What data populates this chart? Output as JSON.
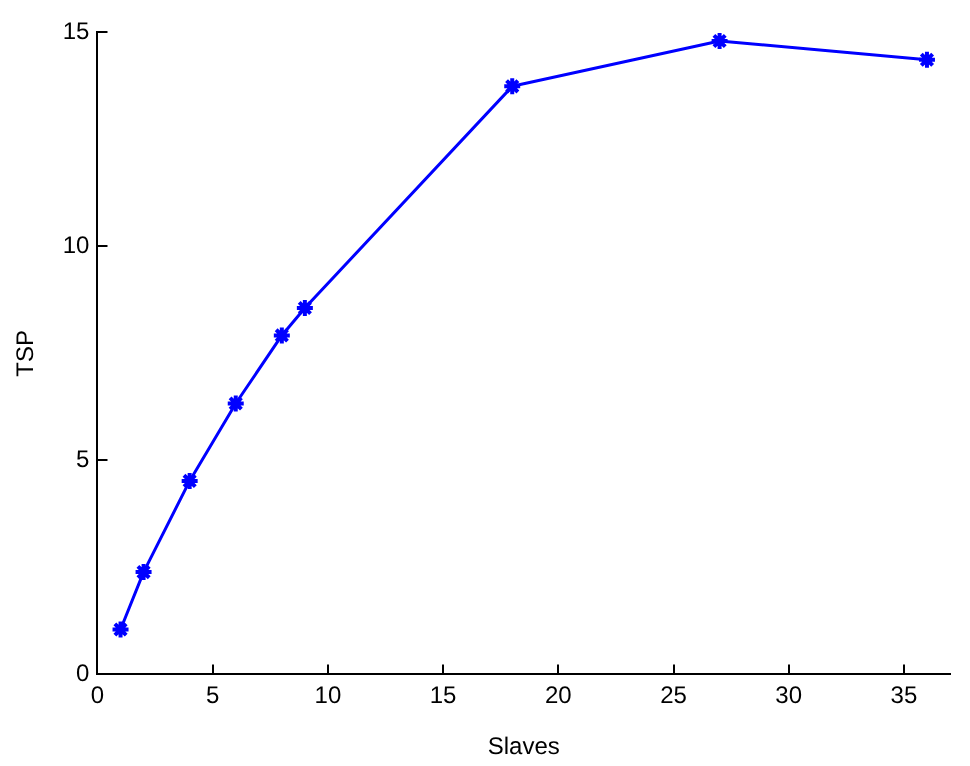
{
  "chart_data": {
    "type": "line",
    "xlabel": "Slaves",
    "ylabel": "TSP",
    "x": [
      1,
      2,
      4,
      6,
      8,
      9,
      18,
      27,
      36
    ],
    "series": [
      {
        "color": "#0000ff",
        "values": [
          1.05,
          2.39,
          4.52,
          6.33,
          7.92,
          8.56,
          13.74,
          14.8,
          14.36
        ]
      }
    ],
    "xlim": [
      0,
      37
    ],
    "xticks": [
      0,
      5,
      10,
      15,
      20,
      25,
      30,
      35
    ],
    "ylim": [
      0,
      15
    ],
    "yticks": [
      0,
      5,
      10,
      15
    ],
    "marker": "cross",
    "line_style": "solid",
    "grid": false,
    "legend": false
  }
}
